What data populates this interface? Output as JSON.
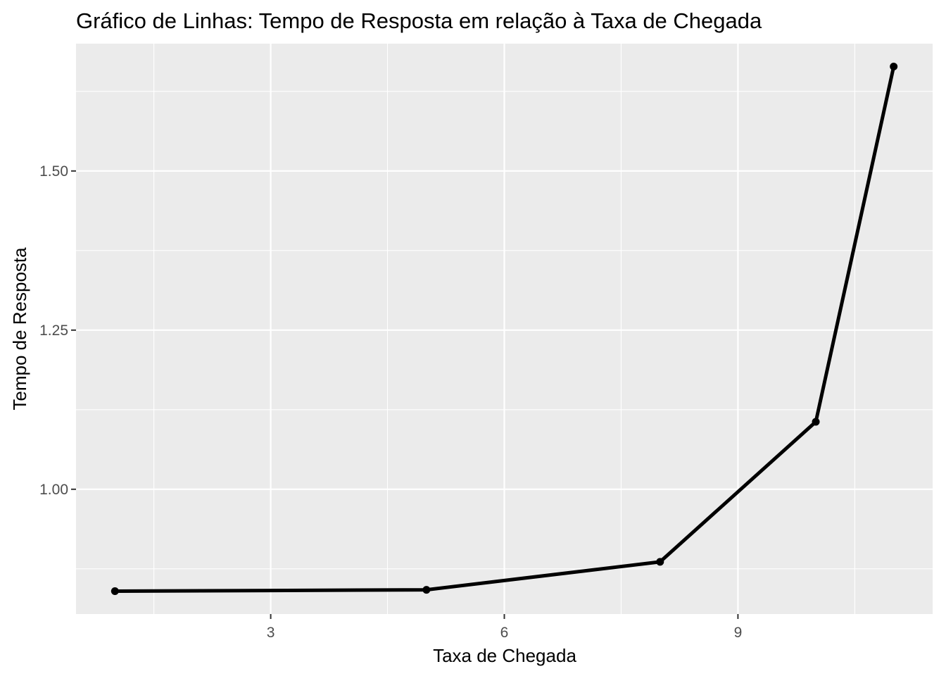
{
  "chart_data": {
    "type": "line",
    "title": "Gráfico de Linhas: Tempo de Resposta em relação à Taxa de Chegada",
    "xlabel": "Taxa de Chegada",
    "ylabel": "Tempo de Resposta",
    "x": [
      1,
      5,
      8,
      10,
      11
    ],
    "series": [
      {
        "values": [
          0.84,
          0.842,
          0.886,
          1.106,
          1.664
        ]
      }
    ],
    "xlim": [
      0.5,
      11.5
    ],
    "ylim": [
      0.804,
      1.7
    ],
    "x_ticks": [
      3,
      6,
      9
    ],
    "x_tick_labels": [
      "3",
      "6",
      "9"
    ],
    "y_ticks": [
      1.0,
      1.25,
      1.5
    ],
    "y_tick_labels": [
      "1.00",
      "1.25",
      "1.50"
    ],
    "grid": true,
    "colors": {
      "panel_background": "#ebebeb",
      "grid_major": "#ffffff",
      "line": "#000000",
      "tick_text": "#4d4d4d"
    }
  }
}
